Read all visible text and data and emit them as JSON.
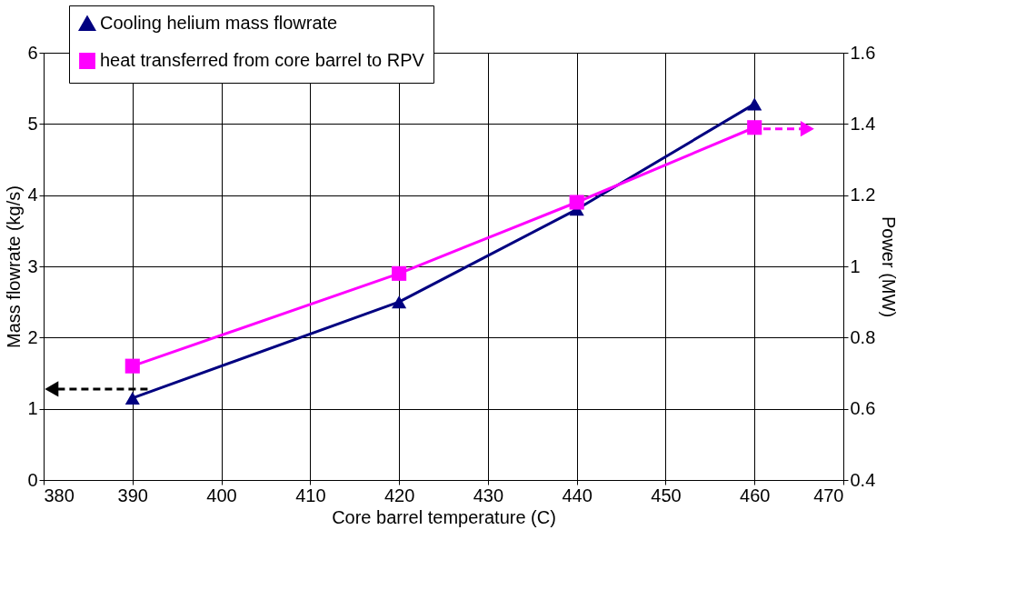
{
  "chart_data": {
    "type": "line",
    "xlabel": "Core barrel temperature (C)",
    "ylabel": "Mass flowrate (kg/s)",
    "y2label": "Power (MW)",
    "x": [
      390,
      420,
      440,
      460
    ],
    "series": [
      {
        "name": "Cooling helium mass flowrate",
        "color": "#000080",
        "values": [
          1.15,
          2.5,
          3.8,
          5.28
        ],
        "marker": "triangle"
      },
      {
        "name": "heat transferred from core barrel to RPV",
        "color": "#ff00ff",
        "values": [
          0.72,
          0.98,
          1.18,
          1.39
        ],
        "axis": "y2",
        "marker": "square"
      }
    ],
    "xlim": [
      380,
      470
    ],
    "xticks": [
      380,
      390,
      400,
      410,
      420,
      430,
      440,
      450,
      460,
      470
    ],
    "ylim": [
      0,
      6
    ],
    "yticks": [
      0,
      1,
      2,
      3,
      4,
      5,
      6
    ],
    "y2lim": [
      0.4,
      1.6
    ],
    "y2ticks": [
      0.4,
      0.6,
      0.8,
      1,
      1.2,
      1.4,
      1.6
    ],
    "grid": true,
    "legend": "top left",
    "line_style": "solid"
  }
}
